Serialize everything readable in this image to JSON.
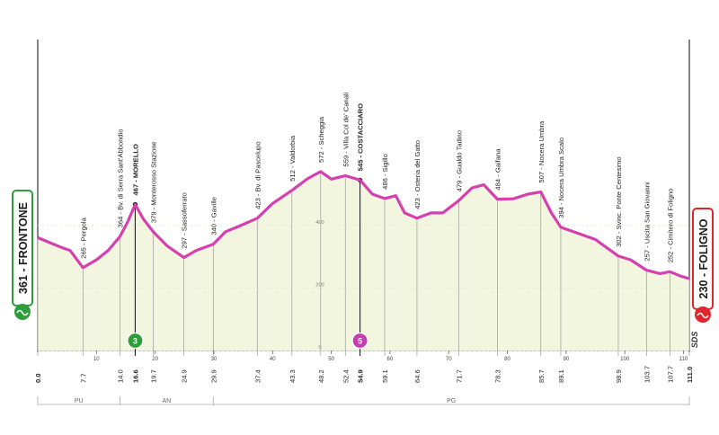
{
  "chart_data": {
    "type": "area",
    "start": {
      "label": "361 - FRONTONE",
      "color": "#2e9e3a"
    },
    "finish": {
      "label": "230 - FOLIGNO",
      "color": "#e0252b"
    },
    "brand": "SDS",
    "profile_color": "#d63fb0",
    "fill_color": "#f3f6de",
    "x_unit": "km",
    "xlim": [
      0,
      111
    ],
    "ylim": [
      0,
      620
    ],
    "elevation_ticks": [
      0,
      200,
      400
    ],
    "km_ticks": [
      10,
      20,
      30,
      40,
      50,
      60,
      70,
      80,
      90,
      100,
      110
    ],
    "profile": [
      [
        0,
        361
      ],
      [
        2,
        345
      ],
      [
        4,
        330
      ],
      [
        5.5,
        320
      ],
      [
        7.7,
        265
      ],
      [
        10,
        290
      ],
      [
        12,
        320
      ],
      [
        14,
        364
      ],
      [
        15.3,
        410
      ],
      [
        16.6,
        467
      ],
      [
        18,
        420
      ],
      [
        19.7,
        379
      ],
      [
        22,
        335
      ],
      [
        24.9,
        297
      ],
      [
        27,
        320
      ],
      [
        29.9,
        340
      ],
      [
        32,
        380
      ],
      [
        34,
        395
      ],
      [
        37.4,
        423
      ],
      [
        40,
        470
      ],
      [
        43.3,
        512
      ],
      [
        46,
        550
      ],
      [
        48.2,
        572
      ],
      [
        50,
        548
      ],
      [
        52.4,
        559
      ],
      [
        54.9,
        545
      ],
      [
        57,
        500
      ],
      [
        59.1,
        486
      ],
      [
        61,
        495
      ],
      [
        62.5,
        440
      ],
      [
        64.6,
        423
      ],
      [
        67,
        440
      ],
      [
        69,
        440
      ],
      [
        71.7,
        479
      ],
      [
        74,
        520
      ],
      [
        76,
        530
      ],
      [
        78.3,
        484
      ],
      [
        81,
        485
      ],
      [
        83.5,
        500
      ],
      [
        85.7,
        507
      ],
      [
        87.5,
        440
      ],
      [
        89.1,
        394
      ],
      [
        92,
        375
      ],
      [
        95,
        355
      ],
      [
        98.9,
        302
      ],
      [
        101,
        290
      ],
      [
        103.7,
        257
      ],
      [
        106,
        246
      ],
      [
        107.7,
        252
      ],
      [
        109.5,
        238
      ],
      [
        111,
        230
      ]
    ],
    "points": [
      {
        "km": "0.0",
        "x": 0,
        "label": "",
        "strong": false,
        "y": 361
      },
      {
        "km": "7.7",
        "x": 7.7,
        "label": "265 - Pergola",
        "strong": false,
        "y": 265
      },
      {
        "km": "14.0",
        "x": 14,
        "label": "364 - Bv. di Serra Sant'Abbondio",
        "strong": false,
        "y": 364
      },
      {
        "km": "16.6",
        "x": 16.6,
        "label": "467 - MORELLO",
        "strong": true,
        "y": 467
      },
      {
        "km": "19.7",
        "x": 19.7,
        "label": "379 - Monterosso Stazione",
        "strong": false,
        "y": 379
      },
      {
        "km": "24.9",
        "x": 24.9,
        "label": "297 - Sassoferrato",
        "strong": false,
        "y": 297
      },
      {
        "km": "29.9",
        "x": 29.9,
        "label": "340 - Gaville",
        "strong": false,
        "y": 340
      },
      {
        "km": "37.4",
        "x": 37.4,
        "label": "423 - Bv. di Pascelupo",
        "strong": false,
        "y": 423
      },
      {
        "km": "43.3",
        "x": 43.3,
        "label": "512 - Valdorbia",
        "strong": false,
        "y": 512
      },
      {
        "km": "48.2",
        "x": 48.2,
        "label": "572 - Scheggia",
        "strong": false,
        "y": 572
      },
      {
        "km": "52.4",
        "x": 52.4,
        "label": "559 - Villa Col de' Canali",
        "strong": false,
        "y": 559
      },
      {
        "km": "54.9",
        "x": 54.9,
        "label": "545 - COSTACCIARO",
        "strong": true,
        "y": 545
      },
      {
        "km": "59.1",
        "x": 59.1,
        "label": "486 - Sigillo",
        "strong": false,
        "y": 486
      },
      {
        "km": "64.6",
        "x": 64.6,
        "label": "423 - Osteria del Gatto",
        "strong": false,
        "y": 423
      },
      {
        "km": "71.7",
        "x": 71.7,
        "label": "479 - Gualdo Tadino",
        "strong": false,
        "y": 479
      },
      {
        "km": "78.3",
        "x": 78.3,
        "label": "484 - Gaifana",
        "strong": false,
        "y": 484
      },
      {
        "km": "85.7",
        "x": 85.7,
        "label": "507 - Nocera Umbra",
        "strong": false,
        "y": 507
      },
      {
        "km": "89.1",
        "x": 89.1,
        "label": "394 - Nocera Umbra Scalo",
        "strong": false,
        "y": 394
      },
      {
        "km": "98.9",
        "x": 98.9,
        "label": "302 - Svinc. Ponte Centesimo",
        "strong": false,
        "y": 302
      },
      {
        "km": "103.7",
        "x": 103.7,
        "label": "257 - Uscita San Giovanni",
        "strong": false,
        "y": 257
      },
      {
        "km": "107.7",
        "x": 107.7,
        "label": "252 - Cimitero di Foligno",
        "strong": false,
        "y": 252
      },
      {
        "km": "111.0",
        "x": 111,
        "label": "",
        "strong": false,
        "y": 230
      }
    ],
    "markers": [
      {
        "text": "3",
        "km": 16.6,
        "color": "#2e9e3a"
      },
      {
        "text": "5",
        "km": 54.9,
        "color": "#c93bb1"
      }
    ],
    "regions": [
      {
        "label": "PU",
        "from": 0,
        "to": 14
      },
      {
        "label": "AN",
        "from": 14,
        "to": 29.9
      },
      {
        "label": "PG",
        "from": 29.9,
        "to": 111
      }
    ]
  }
}
